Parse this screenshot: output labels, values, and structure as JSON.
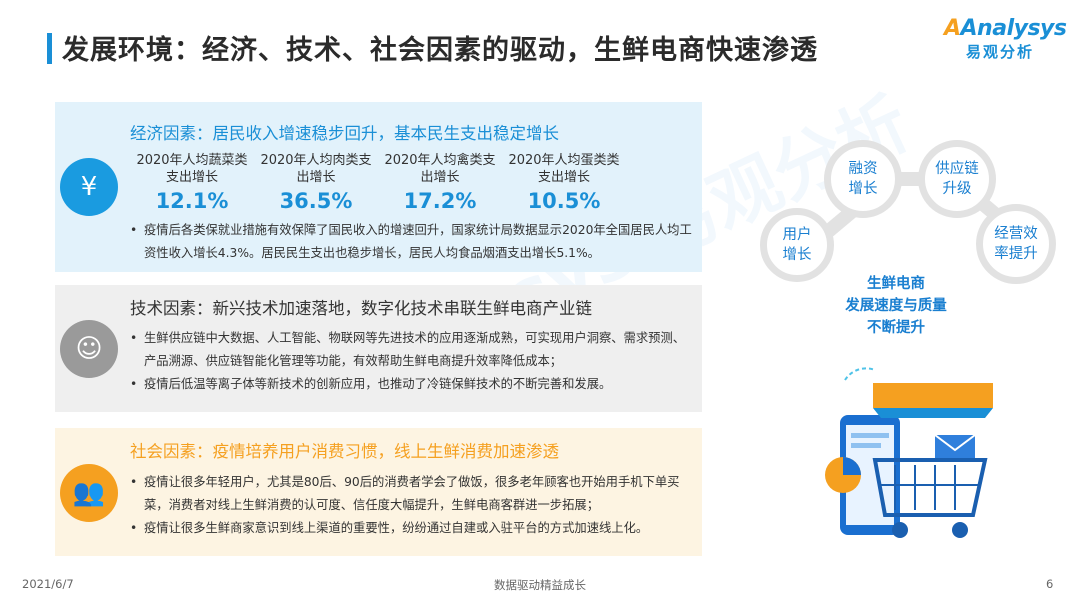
{
  "header": {
    "title": "发展环境：经济、技术、社会因素的驱动，生鲜电商快速渗透",
    "logo_en": "Analysys",
    "logo_cn": "易观分析"
  },
  "economic": {
    "title": "经济因素：居民收入增速稳步回升，基本民生支出稳定增长",
    "icon": "yen-hand-icon",
    "color": "#1a9be0",
    "stats": [
      {
        "label": "2020年人均蔬菜类支出增长",
        "value": "12.1%"
      },
      {
        "label": "2020年人均肉类支出增长",
        "value": "36.5%"
      },
      {
        "label": "2020年人均禽类支出增长",
        "value": "17.2%"
      },
      {
        "label": "2020年人均蛋类类支出增长",
        "value": "10.5%"
      }
    ],
    "bullets": [
      "疫情后各类保就业措施有效保障了国民收入的增速回升，国家统计局数据显示2020年全国居民人均工资性收入增长4.3%。居民民生支出也稳步增长，居民人均食品烟酒支出增长5.1%。"
    ]
  },
  "technology": {
    "title": "技术因素：新兴技术加速落地，数字化技术串联生鲜电商产业链",
    "icon": "ai-head-icon",
    "color": "#999999",
    "bullets": [
      "生鲜供应链中大数据、人工智能、物联网等先进技术的应用逐渐成熟，可实现用户洞察、需求预测、产品溯源、供应链智能化管理等功能，有效帮助生鲜电商提升效率降低成本；",
      "疫情后低温等离子体等新技术的创新应用，也推动了冷链保鲜技术的不断完善和发展。"
    ]
  },
  "social": {
    "title": "社会因素：疫情培养用户消费习惯，线上生鲜消费加速渗透",
    "icon": "people-group-icon",
    "color": "#f5a020",
    "bullets": [
      "疫情让很多年轻用户，尤其是80后、90后的消费者学会了做饭，很多老年顾客也开始用手机下单买菜，消费者对线上生鲜消费的认可度、信任度大幅提升，生鲜电商客群进一步拓展；",
      "疫情让很多生鲜商家意识到线上渠道的重要性，纷纷通过自建或入驻平台的方式加速线上化。"
    ]
  },
  "diagram": {
    "nodes": [
      "用户增长",
      "融资增长",
      "供应链升级",
      "经营效率提升"
    ],
    "center_lines": [
      "生鲜电商",
      "发展速度与质量",
      "不断提升"
    ]
  },
  "footer": {
    "date": "2021/6/7",
    "slogan": "数据驱动精益成长",
    "page": "6"
  }
}
